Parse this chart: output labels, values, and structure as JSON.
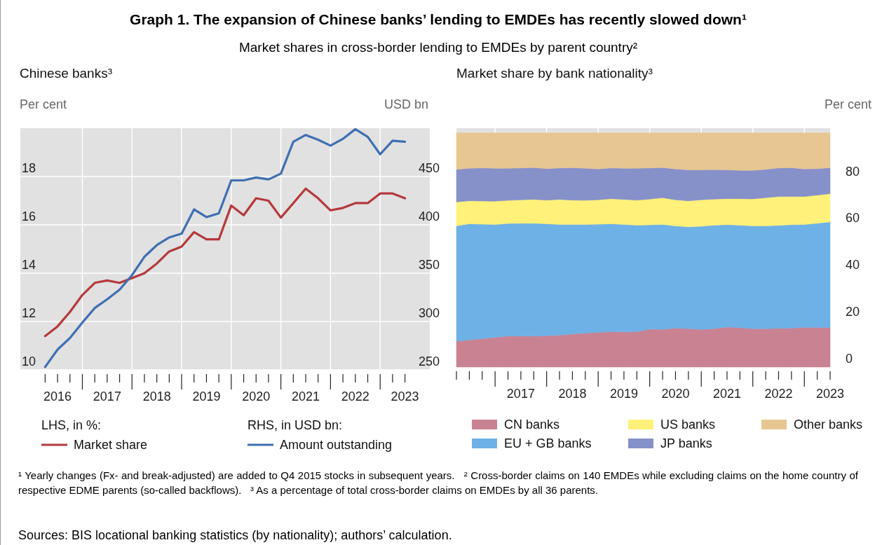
{
  "chart_data": [
    {
      "type": "other",
      "title": "Graph 1. The expansion of Chinese banks’ lending to EMDEs has recently slowed down¹",
      "subtitle": "Market shares in cross-border lending to EMDEs by parent country²",
      "annotations": [
        "¹ Yearly changes (Fx- and break-adjusted) are added to Q4 2015 stocks in subsequent years.",
        "² Cross-border claims on 140 EMDEs while excluding claims on the home country of respective EDME parents (so-called backflows).",
        "³ As a percentage of total cross-border claims on EMDEs by all 36 parents.",
        "Sources: BIS locational banking statistics (by nationality); authors’ calculation."
      ]
    },
    {
      "type": "line",
      "title": "Chinese banks³",
      "ylabel": "Per cent",
      "y2label": "USD bn",
      "x": [
        2016.25,
        2016.5,
        2016.75,
        2017,
        2017.25,
        2017.5,
        2017.75,
        2018,
        2018.25,
        2018.5,
        2018.75,
        2019,
        2019.25,
        2019.5,
        2019.75,
        2020,
        2020.25,
        2020.5,
        2020.75,
        2021,
        2021.25,
        2021.5,
        2021.75,
        2022,
        2022.25,
        2022.5,
        2022.75,
        2023,
        2023.25,
        2023.5
      ],
      "series": [
        {
          "name": "Market share",
          "color": "#b5393b",
          "values": [
            11.4,
            11.8,
            12.4,
            13.1,
            13.6,
            13.7,
            13.6,
            13.8,
            14.0,
            14.4,
            14.9,
            15.1,
            15.7,
            15.4,
            15.4,
            16.8,
            16.4,
            17.1,
            17.0,
            16.3,
            16.9,
            17.5,
            17.1,
            16.6,
            16.7,
            16.9,
            16.9,
            17.3,
            17.3,
            17.1
          ]
        },
        {
          "name": "Amount outstanding",
          "color": "#3f6fb2",
          "axis": "y2",
          "values": [
            253,
            271,
            283,
            299,
            314,
            323,
            333,
            348,
            367,
            379,
            387,
            391,
            416,
            408,
            412,
            446,
            446,
            449,
            447,
            453,
            486,
            493,
            488,
            482,
            489,
            499,
            491,
            473,
            487,
            486
          ]
        }
      ],
      "xlim": [
        2015.75,
        2024.0
      ],
      "xticks": [
        {
          "value": 2016.25,
          "label": null
        },
        {
          "value": 2016.5,
          "label": "2016"
        },
        {
          "value": 2016.75,
          "label": null
        },
        {
          "value": 2017,
          "label": null
        },
        {
          "value": 2017.25,
          "label": null
        },
        {
          "value": 2017.5,
          "label": "2017"
        },
        {
          "value": 2017.75,
          "label": null
        },
        {
          "value": 2018,
          "label": null
        },
        {
          "value": 2018.25,
          "label": null
        },
        {
          "value": 2018.5,
          "label": "2018"
        },
        {
          "value": 2018.75,
          "label": null
        },
        {
          "value": 2019,
          "label": null
        },
        {
          "value": 2019.25,
          "label": null
        },
        {
          "value": 2019.5,
          "label": "2019"
        },
        {
          "value": 2019.75,
          "label": null
        },
        {
          "value": 2020,
          "label": null
        },
        {
          "value": 2020.25,
          "label": null
        },
        {
          "value": 2020.5,
          "label": "2020"
        },
        {
          "value": 2020.75,
          "label": null
        },
        {
          "value": 2021,
          "label": null
        },
        {
          "value": 2021.25,
          "label": null
        },
        {
          "value": 2021.5,
          "label": "2021"
        },
        {
          "value": 2021.75,
          "label": null
        },
        {
          "value": 2022,
          "label": null
        },
        {
          "value": 2022.25,
          "label": null
        },
        {
          "value": 2022.5,
          "label": "2022"
        },
        {
          "value": 2022.75,
          "label": null
        },
        {
          "value": 2023,
          "label": null
        },
        {
          "value": 2023.25,
          "label": null
        },
        {
          "value": 2023.5,
          "label": "2023"
        }
      ],
      "ylim": [
        10,
        20
      ],
      "yticks": [
        10,
        12,
        14,
        16,
        18
      ],
      "y2lim": [
        250,
        500
      ],
      "y2ticks": [
        250,
        300,
        350,
        400,
        450
      ],
      "grid": true,
      "legend": "bottom",
      "annotations": [
        "LHS, in %:",
        "RHS, in USD bn:"
      ]
    },
    {
      "type": "area",
      "stacked": true,
      "title": "Market share by bank nationality³",
      "ylabel": "Per cent",
      "x": [
        2016.25,
        2016.5,
        2016.75,
        2017,
        2017.25,
        2017.5,
        2017.75,
        2018,
        2018.25,
        2018.5,
        2018.75,
        2019,
        2019.25,
        2019.5,
        2019.75,
        2020,
        2020.25,
        2020.5,
        2020.75,
        2021,
        2021.25,
        2021.5,
        2021.75,
        2022,
        2022.25,
        2022.5,
        2022.75,
        2023,
        2023.25,
        2023.5
      ],
      "series": [
        {
          "name": "CN banks",
          "color": "#c98292",
          "values": [
            11.0,
            11.6,
            12.1,
            12.7,
            13.2,
            13.2,
            13.2,
            13.4,
            13.6,
            14.1,
            14.5,
            14.8,
            15.1,
            15.0,
            15.1,
            16.2,
            16.1,
            16.6,
            16.4,
            16.1,
            16.4,
            17.1,
            16.8,
            16.4,
            16.4,
            16.5,
            16.6,
            17.0,
            16.9,
            16.8
          ]
        },
        {
          "name": "EU + GB banks",
          "color": "#6eb1e6",
          "values": [
            49.3,
            49.6,
            48.9,
            48.2,
            48.1,
            48.2,
            48.2,
            47.8,
            47.3,
            46.8,
            46.4,
            46.2,
            46.1,
            45.9,
            45.5,
            44.5,
            44.8,
            43.7,
            43.5,
            44.0,
            44.2,
            43.7,
            43.8,
            43.9,
            43.9,
            44.0,
            44.2,
            43.9,
            44.5,
            45.2
          ]
        },
        {
          "name": "US banks",
          "color": "#fff179",
          "values": [
            10.2,
            9.8,
            9.9,
            9.9,
            9.9,
            10.0,
            10.2,
            10.1,
            10.7,
            10.4,
            10.3,
            10.4,
            10.7,
            10.7,
            10.7,
            11.0,
            11.4,
            11.1,
            11.1,
            11.3,
            11.1,
            11.1,
            11.3,
            11.5,
            12.0,
            12.3,
            12.0,
            11.9,
            12.0,
            12.0
          ]
        },
        {
          "name": "JP banks",
          "color": "#8690c9",
          "values": [
            13.9,
            13.9,
            14.1,
            14.1,
            13.7,
            13.6,
            13.6,
            13.4,
            13.4,
            13.8,
            13.7,
            13.2,
            13.1,
            13.3,
            13.6,
            13.3,
            12.9,
            13.2,
            13.2,
            12.8,
            12.6,
            12.3,
            12.1,
            12.2,
            12.1,
            12.2,
            12.3,
            11.8,
            11.3,
            11.1
          ]
        },
        {
          "name": "Other banks",
          "color": "#e8c692",
          "values": [
            15.6,
            15.1,
            15.0,
            15.1,
            15.1,
            15.0,
            14.8,
            15.3,
            15.0,
            14.9,
            15.1,
            15.4,
            15.0,
            15.1,
            15.1,
            15.0,
            14.8,
            15.4,
            15.8,
            15.8,
            15.7,
            15.8,
            16.0,
            16.0,
            15.6,
            15.0,
            14.9,
            15.4,
            15.3,
            14.9
          ]
        }
      ],
      "xlim": [
        2016.25,
        2023.5
      ],
      "xticks": [
        {
          "value": 2016.25,
          "label": null
        },
        {
          "value": 2016.5,
          "label": null
        },
        {
          "value": 2016.75,
          "label": null
        },
        {
          "value": 2017,
          "label": null
        },
        {
          "value": 2017.25,
          "label": null
        },
        {
          "value": 2017.5,
          "label": "2017"
        },
        {
          "value": 2017.75,
          "label": null
        },
        {
          "value": 2018,
          "label": null
        },
        {
          "value": 2018.25,
          "label": null
        },
        {
          "value": 2018.5,
          "label": "2018"
        },
        {
          "value": 2018.75,
          "label": null
        },
        {
          "value": 2019,
          "label": null
        },
        {
          "value": 2019.25,
          "label": null
        },
        {
          "value": 2019.5,
          "label": "2019"
        },
        {
          "value": 2019.75,
          "label": null
        },
        {
          "value": 2020,
          "label": null
        },
        {
          "value": 2020.25,
          "label": null
        },
        {
          "value": 2020.5,
          "label": "2020"
        },
        {
          "value": 2020.75,
          "label": null
        },
        {
          "value": 2021,
          "label": null
        },
        {
          "value": 2021.25,
          "label": null
        },
        {
          "value": 2021.5,
          "label": "2021"
        },
        {
          "value": 2021.75,
          "label": null
        },
        {
          "value": 2022,
          "label": null
        },
        {
          "value": 2022.25,
          "label": null
        },
        {
          "value": 2022.5,
          "label": "2022"
        },
        {
          "value": 2022.75,
          "label": null
        },
        {
          "value": 2023,
          "label": null
        },
        {
          "value": 2023.25,
          "label": null
        },
        {
          "value": 2023.5,
          "label": "2023"
        }
      ],
      "ylim": [
        0,
        102
      ],
      "yticks": [
        0,
        20,
        40,
        60,
        80
      ],
      "grid": true,
      "legend": "bottom"
    }
  ]
}
